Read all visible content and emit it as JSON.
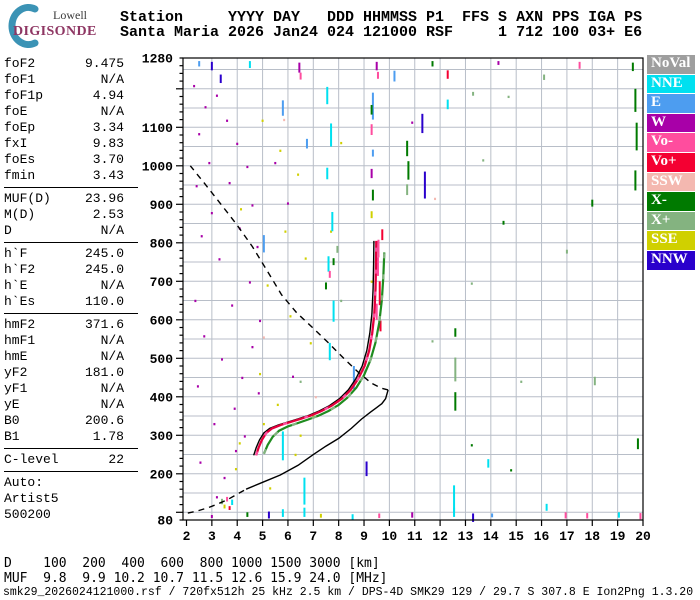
{
  "logo": {
    "top": "Lowell",
    "bottom": "DIGISONDE"
  },
  "header": {
    "line1": "Station     YYYY DAY   DDD HHMMSS P1  FFS S AXN PPS IGA PS",
    "line2": "Santa Maria 2026 Jan24 024 121000 RSF     1 712 100 03+ E6"
  },
  "params": {
    "sections": [
      [
        [
          "foF2",
          "9.475"
        ],
        [
          "foF1",
          "N/A"
        ],
        [
          "foF1p",
          "4.94"
        ],
        [
          "foE",
          "N/A"
        ],
        [
          "foEp",
          "3.34"
        ],
        [
          "fxI",
          "9.83"
        ],
        [
          "foEs",
          "3.70"
        ],
        [
          "fmin",
          "3.43"
        ]
      ],
      [
        [
          "MUF(D)",
          "23.96"
        ],
        [
          "M(D)",
          "2.53"
        ],
        [
          "D",
          "N/A"
        ]
      ],
      [
        [
          "h`F",
          "245.0"
        ],
        [
          "h`F2",
          "245.0"
        ],
        [
          "h`E",
          "N/A"
        ],
        [
          "h`Es",
          "110.0"
        ]
      ],
      [
        [
          "hmF2",
          "371.6"
        ],
        [
          "hmF1",
          "N/A"
        ],
        [
          "hmE",
          "N/A"
        ],
        [
          "yF2",
          "181.0"
        ],
        [
          "yF1",
          "N/A"
        ],
        [
          "yE",
          "N/A"
        ],
        [
          "B0",
          "200.6"
        ],
        [
          "B1",
          "1.78"
        ]
      ],
      [
        [
          "C-level",
          "22"
        ]
      ]
    ],
    "auto_lines": [
      "Auto:",
      "Artist5",
      "500200"
    ]
  },
  "legend": [
    {
      "label": "NoVal",
      "color": "#9e9e9e"
    },
    {
      "label": "NNE",
      "color": "#00e0f0"
    },
    {
      "label": "E",
      "color": "#4d9df0"
    },
    {
      "label": "W",
      "color": "#a800a8"
    },
    {
      "label": "Vo-",
      "color": "#ff4d9e"
    },
    {
      "label": "Vo+",
      "color": "#f40032"
    },
    {
      "label": "SSW",
      "color": "#f4b8b0"
    },
    {
      "label": "X-",
      "color": "#007a00"
    },
    {
      "label": "X+",
      "color": "#84b380"
    },
    {
      "label": "SSE",
      "color": "#d0d000"
    },
    {
      "label": "NNW",
      "color": "#2a00cc"
    }
  ],
  "chart_data": {
    "type": "scatter",
    "title": "Digisonde ionogram, Santa Maria, 2026 Jan24 121000",
    "xlabel": "[MHz]",
    "ylabel": "[km]",
    "x_axis": {
      "min": 2,
      "max": 20,
      "ticks": [
        2,
        3,
        4,
        5,
        6,
        7,
        8,
        9,
        10,
        11,
        12,
        13,
        14,
        15,
        16,
        17,
        18,
        19,
        20
      ]
    },
    "y_axis": {
      "min": 80,
      "max": 1280,
      "tick_labels": [
        1280,
        1100,
        1000,
        900,
        800,
        700,
        600,
        500,
        400,
        300,
        200,
        80
      ],
      "minor_step": 20
    },
    "grid": {
      "x_step_mhz": 1,
      "y_step_km": 50,
      "color": "#b8bec8"
    },
    "palette": [
      "#9e9e9e",
      "#00e0f0",
      "#4d9df0",
      "#a800a8",
      "#ff4d9e",
      "#f40032",
      "#f4b8b0",
      "#007a00",
      "#84b380",
      "#d0d000",
      "#2a00cc"
    ],
    "trace_colors": {
      "o_trace": "#e4003c",
      "o_overlay": "#ff4d9e",
      "x_trace": "#1f8c1f",
      "x_overlay": "#84b380",
      "fit": "#000000"
    },
    "curves": {
      "profile_bottom_dashed": [
        [
          2.05,
          98
        ],
        [
          2.45,
          104
        ],
        [
          2.85,
          112
        ],
        [
          3.25,
          122
        ],
        [
          3.65,
          134
        ],
        [
          4.0,
          147
        ],
        [
          4.35,
          160
        ]
      ],
      "profile_solid": [
        [
          4.35,
          160
        ],
        [
          5.0,
          178
        ],
        [
          5.7,
          197
        ],
        [
          6.4,
          222
        ],
        [
          7.0,
          250
        ],
        [
          7.5,
          272
        ],
        [
          8.0,
          292
        ],
        [
          8.5,
          318
        ],
        [
          8.9,
          342
        ],
        [
          9.25,
          360
        ],
        [
          9.5,
          372
        ],
        [
          9.7,
          382
        ],
        [
          9.85,
          395
        ],
        [
          9.95,
          418
        ]
      ],
      "topside_dashed": [
        [
          9.95,
          418
        ],
        [
          9.7,
          422
        ],
        [
          9.3,
          435
        ],
        [
          8.8,
          462
        ],
        [
          8.2,
          500
        ],
        [
          7.6,
          540
        ],
        [
          7.0,
          578
        ],
        [
          6.35,
          618
        ],
        [
          5.75,
          665
        ],
        [
          5.2,
          725
        ],
        [
          4.6,
          790
        ],
        [
          3.95,
          850
        ],
        [
          3.3,
          905
        ],
        [
          2.7,
          955
        ],
        [
          2.15,
          1000
        ]
      ],
      "o_trace": [
        [
          4.72,
          248
        ],
        [
          4.82,
          268
        ],
        [
          4.95,
          288
        ],
        [
          5.12,
          306
        ],
        [
          5.35,
          318
        ],
        [
          5.7,
          327
        ],
        [
          6.1,
          335
        ],
        [
          6.5,
          343
        ],
        [
          6.9,
          352
        ],
        [
          7.3,
          363
        ],
        [
          7.7,
          377
        ],
        [
          8.1,
          395
        ],
        [
          8.45,
          418
        ],
        [
          8.75,
          447
        ],
        [
          9.0,
          480
        ],
        [
          9.18,
          520
        ],
        [
          9.3,
          565
        ],
        [
          9.38,
          615
        ],
        [
          9.43,
          680
        ],
        [
          9.45,
          745
        ],
        [
          9.46,
          805
        ]
      ],
      "x_trace": [
        [
          5.05,
          252
        ],
        [
          5.2,
          275
        ],
        [
          5.4,
          296
        ],
        [
          5.65,
          312
        ],
        [
          6.0,
          323
        ],
        [
          6.4,
          332
        ],
        [
          6.8,
          341
        ],
        [
          7.2,
          351
        ],
        [
          7.6,
          363
        ],
        [
          8.0,
          379
        ],
        [
          8.35,
          398
        ],
        [
          8.7,
          424
        ],
        [
          9.0,
          456
        ],
        [
          9.25,
          495
        ],
        [
          9.45,
          540
        ],
        [
          9.6,
          592
        ],
        [
          9.7,
          650
        ],
        [
          9.76,
          710
        ],
        [
          9.8,
          775
        ]
      ]
    },
    "noise": [
      [
        2.3,
        1210,
        6,
        3
      ],
      [
        2.75,
        1155,
        6,
        3
      ],
      [
        3.2,
        1185,
        6,
        3
      ],
      [
        2.5,
        1085,
        6,
        3
      ],
      [
        3.6,
        1120,
        6,
        3
      ],
      [
        4.0,
        1060,
        6,
        3
      ],
      [
        2.9,
        1010,
        6,
        3
      ],
      [
        4.4,
        1000,
        6,
        3
      ],
      [
        2.4,
        950,
        6,
        3
      ],
      [
        3.7,
        958,
        6,
        3
      ],
      [
        4.6,
        900,
        6,
        3
      ],
      [
        3.0,
        880,
        6,
        3
      ],
      [
        4.1,
        840,
        6,
        3
      ],
      [
        2.6,
        820,
        6,
        3
      ],
      [
        4.8,
        792,
        6,
        3
      ],
      [
        3.3,
        760,
        6,
        3
      ],
      [
        4.5,
        700,
        6,
        3
      ],
      [
        2.35,
        652,
        6,
        3
      ],
      [
        3.8,
        640,
        6,
        3
      ],
      [
        4.9,
        600,
        6,
        3
      ],
      [
        2.7,
        560,
        6,
        3
      ],
      [
        4.6,
        532,
        6,
        3
      ],
      [
        3.4,
        500,
        6,
        3
      ],
      [
        4.2,
        452,
        6,
        3
      ],
      [
        2.45,
        430,
        6,
        3
      ],
      [
        4.85,
        412,
        6,
        3
      ],
      [
        3.9,
        372,
        6,
        3
      ],
      [
        3.1,
        332,
        6,
        3
      ],
      [
        4.3,
        300,
        6,
        3
      ],
      [
        3.95,
        262,
        6,
        3
      ],
      [
        2.55,
        232,
        6,
        3
      ],
      [
        3.5,
        192,
        6,
        3
      ],
      [
        3.2,
        142,
        6,
        3
      ],
      [
        10.9,
        1115,
        6,
        3
      ],
      [
        6.0,
        905,
        6,
        3
      ],
      [
        6.2,
        455,
        6,
        3
      ],
      [
        5.5,
        1010,
        6,
        3
      ],
      [
        5.0,
        1120,
        6,
        9
      ],
      [
        5.7,
        1042,
        6,
        9
      ],
      [
        6.4,
        980,
        6,
        9
      ],
      [
        4.15,
        890,
        6,
        9
      ],
      [
        5.9,
        832,
        6,
        9
      ],
      [
        6.7,
        762,
        6,
        9
      ],
      [
        5.2,
        692,
        6,
        9
      ],
      [
        6.1,
        612,
        6,
        9
      ],
      [
        6.9,
        542,
        6,
        9
      ],
      [
        4.9,
        462,
        6,
        9
      ],
      [
        5.6,
        382,
        6,
        9
      ],
      [
        5.05,
        332,
        6,
        9
      ],
      [
        6.5,
        302,
        6,
        9
      ],
      [
        3.95,
        215,
        6,
        9
      ],
      [
        8.1,
        1062,
        6,
        9
      ],
      [
        7.7,
        832,
        6,
        9
      ],
      [
        9.3,
        702,
        6,
        9
      ],
      [
        6.3,
        252,
        6,
        9
      ],
      [
        7.0,
        352,
        6,
        9
      ],
      [
        4.1,
        282,
        6,
        9
      ],
      [
        5.3,
        165,
        6,
        9
      ],
      [
        7.3,
        96,
        10,
        9
      ],
      [
        3.5,
        120,
        10,
        9
      ],
      [
        7.55,
        1205,
        45,
        1
      ],
      [
        7.7,
        1110,
        60,
        1
      ],
      [
        7.55,
        995,
        30,
        1
      ],
      [
        7.75,
        880,
        50,
        1
      ],
      [
        7.6,
        765,
        40,
        1
      ],
      [
        7.8,
        650,
        55,
        1
      ],
      [
        7.65,
        540,
        45,
        1
      ],
      [
        12.55,
        170,
        70,
        1
      ],
      [
        5.8,
        310,
        75,
        1
      ],
      [
        6.65,
        190,
        70,
        1
      ],
      [
        8.55,
        95,
        15,
        1
      ],
      [
        16.2,
        122,
        18,
        1
      ],
      [
        13.9,
        238,
        22,
        1
      ],
      [
        12.3,
        1172,
        25,
        1
      ],
      [
        5.8,
        108,
        20,
        1
      ],
      [
        6.65,
        112,
        24,
        1
      ],
      [
        12.55,
        112,
        24,
        1
      ],
      [
        19.05,
        100,
        14,
        1
      ],
      [
        3.8,
        133,
        14,
        1
      ],
      [
        4.5,
        1272,
        18,
        1
      ],
      [
        5.8,
        1170,
        40,
        2
      ],
      [
        6.75,
        1070,
        25,
        2
      ],
      [
        5.05,
        820,
        45,
        2
      ],
      [
        8.6,
        480,
        60,
        2
      ],
      [
        9.35,
        1190,
        70,
        2
      ],
      [
        10.2,
        1247,
        28,
        2
      ],
      [
        14.05,
        97,
        10,
        2
      ],
      [
        2.5,
        1272,
        14,
        2
      ],
      [
        11.3,
        1135,
        50,
        10
      ],
      [
        11.4,
        985,
        70,
        10
      ],
      [
        3.35,
        1237,
        22,
        10
      ],
      [
        9.1,
        232,
        38,
        10
      ],
      [
        13.3,
        97,
        22,
        10
      ],
      [
        5.25,
        102,
        18,
        10
      ],
      [
        3.0,
        1270,
        22,
        10
      ],
      [
        9.3,
        1158,
        25,
        7
      ],
      [
        9.3,
        1108,
        28,
        4
      ],
      [
        9.35,
        1042,
        18,
        2
      ],
      [
        9.3,
        992,
        24,
        3
      ],
      [
        9.35,
        938,
        28,
        7
      ],
      [
        9.3,
        882,
        18,
        9
      ],
      [
        9.55,
        762,
        48,
        4
      ],
      [
        9.62,
        700,
        62,
        5
      ],
      [
        9.5,
        642,
        42,
        4
      ],
      [
        9.65,
        598,
        28,
        5
      ],
      [
        9.57,
        808,
        46,
        4
      ],
      [
        9.72,
        835,
        28,
        5
      ],
      [
        10.7,
        1065,
        40,
        7
      ],
      [
        10.75,
        1012,
        48,
        7
      ],
      [
        10.7,
        952,
        28,
        8
      ],
      [
        12.6,
        578,
        22,
        7
      ],
      [
        12.6,
        502,
        62,
        8
      ],
      [
        12.6,
        412,
        48,
        7
      ],
      [
        19.7,
        1200,
        60,
        7
      ],
      [
        19.75,
        1112,
        72,
        7
      ],
      [
        19.7,
        988,
        52,
        7
      ],
      [
        19.8,
        292,
        28,
        7
      ],
      [
        18.0,
        912,
        18,
        7
      ],
      [
        16.1,
        1237,
        14,
        8
      ],
      [
        17.0,
        782,
        10,
        8
      ],
      [
        18.1,
        452,
        22,
        8
      ],
      [
        14.5,
        857,
        10,
        7
      ],
      [
        13.3,
        1192,
        10,
        8
      ],
      [
        6.5,
        442,
        6,
        8
      ],
      [
        8.1,
        652,
        6,
        8
      ],
      [
        11.7,
        547,
        6,
        8
      ],
      [
        13.25,
        697,
        6,
        8
      ],
      [
        15.2,
        442,
        6,
        8
      ],
      [
        13.7,
        1017,
        6,
        8
      ],
      [
        14.7,
        1182,
        6,
        8
      ],
      [
        13.25,
        277,
        6,
        7
      ],
      [
        14.8,
        212,
        6,
        7
      ],
      [
        11.7,
        1272,
        14,
        7
      ],
      [
        19.6,
        1268,
        22,
        7
      ],
      [
        4.4,
        100,
        12,
        7
      ],
      [
        7.5,
        697,
        18,
        7
      ],
      [
        7.65,
        727,
        18,
        4
      ],
      [
        7.8,
        760,
        18,
        7
      ],
      [
        7.95,
        792,
        18,
        8
      ],
      [
        3.4,
        135,
        14,
        8
      ],
      [
        3.6,
        140,
        12,
        4
      ],
      [
        9.6,
        97,
        12,
        4
      ],
      [
        10.9,
        100,
        14,
        3
      ],
      [
        16.95,
        100,
        16,
        4
      ],
      [
        17.8,
        98,
        14,
        4
      ],
      [
        19.9,
        98,
        16,
        4
      ],
      [
        3.0,
        93,
        8,
        3
      ],
      [
        3.7,
        116,
        10,
        5
      ],
      [
        6.45,
        1268,
        26,
        3
      ],
      [
        6.5,
        1242,
        18,
        4
      ],
      [
        9.5,
        1270,
        22,
        3
      ],
      [
        9.55,
        1244,
        18,
        4
      ],
      [
        17.5,
        1270,
        18,
        4
      ],
      [
        14.3,
        1272,
        10,
        3
      ],
      [
        12.3,
        1248,
        22,
        5
      ],
      [
        5.85,
        1122,
        6,
        6
      ],
      [
        7.1,
        402,
        6,
        6
      ],
      [
        11.8,
        917,
        6,
        6
      ],
      [
        5.05,
        557,
        6,
        6
      ]
    ]
  },
  "footer": {
    "d_line": "D    100  200  400  600  800 1000 1500 3000 [km]",
    "muf_line": "MUF  9.8  9.9 10.2 10.7 11.5 12.6 15.9 24.0 [MHz]",
    "status": "smk29_2026024121000.rsf / 720fx512h 25 kHz 2.5 km / DPS-4D SMK29 129 / 29.7 S 307.8 E Ion2Png 1.3.20"
  }
}
